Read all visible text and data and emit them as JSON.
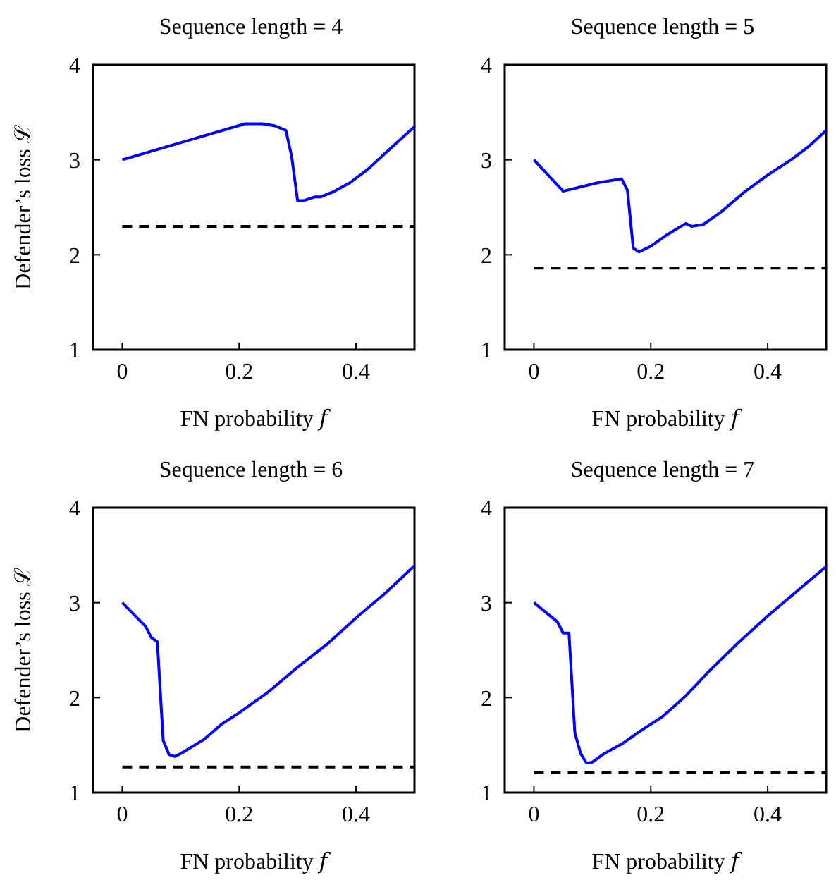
{
  "chart_data": [
    {
      "type": "line",
      "title": "Sequence length = 4",
      "xlabel": "FN probability 𝑓",
      "ylabel": "Defender’s loss ℒ",
      "xlim": [
        -0.05,
        0.5
      ],
      "ylim": [
        1,
        4
      ],
      "xticks": [
        0,
        0.2,
        0.4
      ],
      "yticks": [
        1,
        2,
        3,
        4
      ],
      "series": [
        {
          "color": "#0000ff",
          "line_style": "solid",
          "x": [
            0,
            0.21,
            0.24,
            0.26,
            0.28,
            0.29,
            0.3,
            0.31,
            0.33,
            0.34,
            0.36,
            0.39,
            0.42,
            0.45,
            0.5
          ],
          "values": [
            3.0,
            3.38,
            3.38,
            3.36,
            3.31,
            3.03,
            2.57,
            2.57,
            2.61,
            2.61,
            2.66,
            2.76,
            2.9,
            3.07,
            3.35
          ]
        },
        {
          "color": "#000000",
          "line_style": "dashed",
          "x": [
            0,
            0.5
          ],
          "values": [
            2.3,
            2.3
          ]
        }
      ]
    },
    {
      "type": "line",
      "title": "Sequence length = 5",
      "xlabel": "FN probability 𝑓",
      "xlim": [
        -0.05,
        0.5
      ],
      "ylim": [
        1,
        4
      ],
      "xticks": [
        0,
        0.2,
        0.4
      ],
      "yticks": [
        1,
        2,
        3,
        4
      ],
      "series": [
        {
          "color": "#0000ff",
          "line_style": "solid",
          "x": [
            0,
            0.05,
            0.11,
            0.15,
            0.16,
            0.17,
            0.18,
            0.2,
            0.23,
            0.26,
            0.27,
            0.29,
            0.32,
            0.36,
            0.4,
            0.44,
            0.47,
            0.5
          ],
          "values": [
            3.0,
            2.67,
            2.76,
            2.8,
            2.68,
            2.07,
            2.03,
            2.09,
            2.22,
            2.33,
            2.3,
            2.32,
            2.45,
            2.66,
            2.84,
            3.0,
            3.14,
            3.31
          ]
        },
        {
          "color": "#000000",
          "line_style": "dashed",
          "x": [
            0,
            0.5
          ],
          "values": [
            1.86,
            1.86
          ]
        }
      ]
    },
    {
      "type": "line",
      "title": "Sequence length = 6",
      "xlabel": "FN probability 𝑓",
      "ylabel": "Defender’s loss ℒ",
      "xlim": [
        -0.05,
        0.5
      ],
      "ylim": [
        1,
        4
      ],
      "xticks": [
        0,
        0.2,
        0.4
      ],
      "yticks": [
        1,
        2,
        3,
        4
      ],
      "series": [
        {
          "color": "#0000ff",
          "line_style": "solid",
          "x": [
            0,
            0.04,
            0.05,
            0.06,
            0.07,
            0.08,
            0.09,
            0.1,
            0.14,
            0.17,
            0.2,
            0.25,
            0.3,
            0.35,
            0.4,
            0.45,
            0.5
          ],
          "values": [
            3.0,
            2.75,
            2.63,
            2.59,
            1.55,
            1.4,
            1.38,
            1.41,
            1.56,
            1.72,
            1.84,
            2.06,
            2.32,
            2.56,
            2.84,
            3.1,
            3.39
          ]
        },
        {
          "color": "#000000",
          "line_style": "dashed",
          "x": [
            0,
            0.5
          ],
          "values": [
            1.27,
            1.27
          ]
        }
      ]
    },
    {
      "type": "line",
      "title": "Sequence length = 7",
      "xlabel": "FN probability 𝑓",
      "xlim": [
        -0.05,
        0.5
      ],
      "ylim": [
        1,
        4
      ],
      "xticks": [
        0,
        0.2,
        0.4
      ],
      "yticks": [
        1,
        2,
        3,
        4
      ],
      "series": [
        {
          "color": "#0000ff",
          "line_style": "solid",
          "x": [
            0,
            0.04,
            0.05,
            0.06,
            0.07,
            0.08,
            0.09,
            0.1,
            0.12,
            0.15,
            0.18,
            0.22,
            0.26,
            0.3,
            0.35,
            0.4,
            0.45,
            0.5
          ],
          "values": [
            3.0,
            2.8,
            2.68,
            2.68,
            1.63,
            1.41,
            1.31,
            1.32,
            1.41,
            1.51,
            1.64,
            1.8,
            2.02,
            2.28,
            2.58,
            2.86,
            3.12,
            3.38
          ]
        },
        {
          "color": "#000000",
          "line_style": "dashed",
          "x": [
            0,
            0.5
          ],
          "values": [
            1.21,
            1.21
          ]
        }
      ]
    }
  ]
}
